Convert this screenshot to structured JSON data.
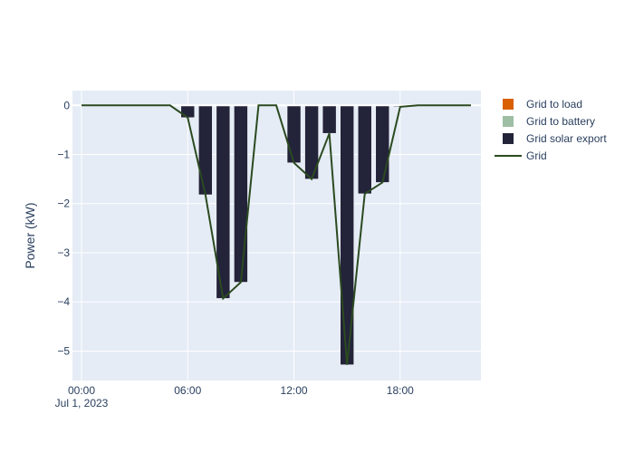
{
  "chart_data": {
    "type": "bar",
    "title": "",
    "xlabel": "",
    "ylabel": "Power (kW)",
    "x_hours": [
      0,
      1,
      2,
      3,
      4,
      5,
      6,
      7,
      8,
      9,
      10,
      11,
      12,
      13,
      14,
      15,
      16,
      17,
      18,
      19,
      20,
      21,
      22
    ],
    "xlim": [
      0,
      22.5
    ],
    "ylim": [
      -5.6,
      0.3
    ],
    "y_ticks": [
      0,
      -1,
      -2,
      -3,
      -4,
      -5
    ],
    "y_tick_labels": [
      "0",
      "−1",
      "−2",
      "−3",
      "−4",
      "−5"
    ],
    "x_ticks": [
      0,
      6,
      12,
      18
    ],
    "x_tick_labels": [
      "00:00",
      "06:00",
      "12:00",
      "18:00"
    ],
    "x_date_label": "Jul 1, 2023",
    "series": [
      {
        "name": "Grid to load",
        "kind": "bar",
        "color": "#d95f02",
        "values": [
          0,
          0,
          0,
          0,
          0,
          0,
          0,
          0,
          0,
          0,
          0,
          0,
          0,
          0,
          0,
          0,
          0,
          0,
          0,
          0,
          0,
          0,
          0
        ]
      },
      {
        "name": "Grid to battery",
        "kind": "bar",
        "color": "#9ebfa4",
        "values": [
          0,
          0,
          0,
          0,
          0,
          0,
          0,
          0,
          0,
          0,
          0,
          0,
          0,
          0,
          0,
          0,
          0,
          0,
          0,
          0,
          0,
          0,
          0
        ]
      },
      {
        "name": "Grid solar export",
        "kind": "bar",
        "color": "#23233a",
        "values": [
          0,
          0,
          0,
          0,
          0,
          0,
          -0.25,
          -1.82,
          -3.93,
          -3.6,
          0,
          0,
          -1.17,
          -1.5,
          -0.57,
          -5.28,
          -1.8,
          -1.57,
          -0.03,
          0,
          0,
          0,
          0
        ]
      },
      {
        "name": "Grid",
        "kind": "line",
        "color": "#2b4a20",
        "values": [
          0,
          0,
          0,
          0,
          0,
          0,
          -0.25,
          -1.82,
          -3.93,
          -3.6,
          0,
          0,
          -1.17,
          -1.5,
          -0.57,
          -5.28,
          -1.8,
          -1.57,
          -0.03,
          0,
          0,
          0,
          0
        ]
      }
    ],
    "legend_position": "right",
    "grid": true
  }
}
